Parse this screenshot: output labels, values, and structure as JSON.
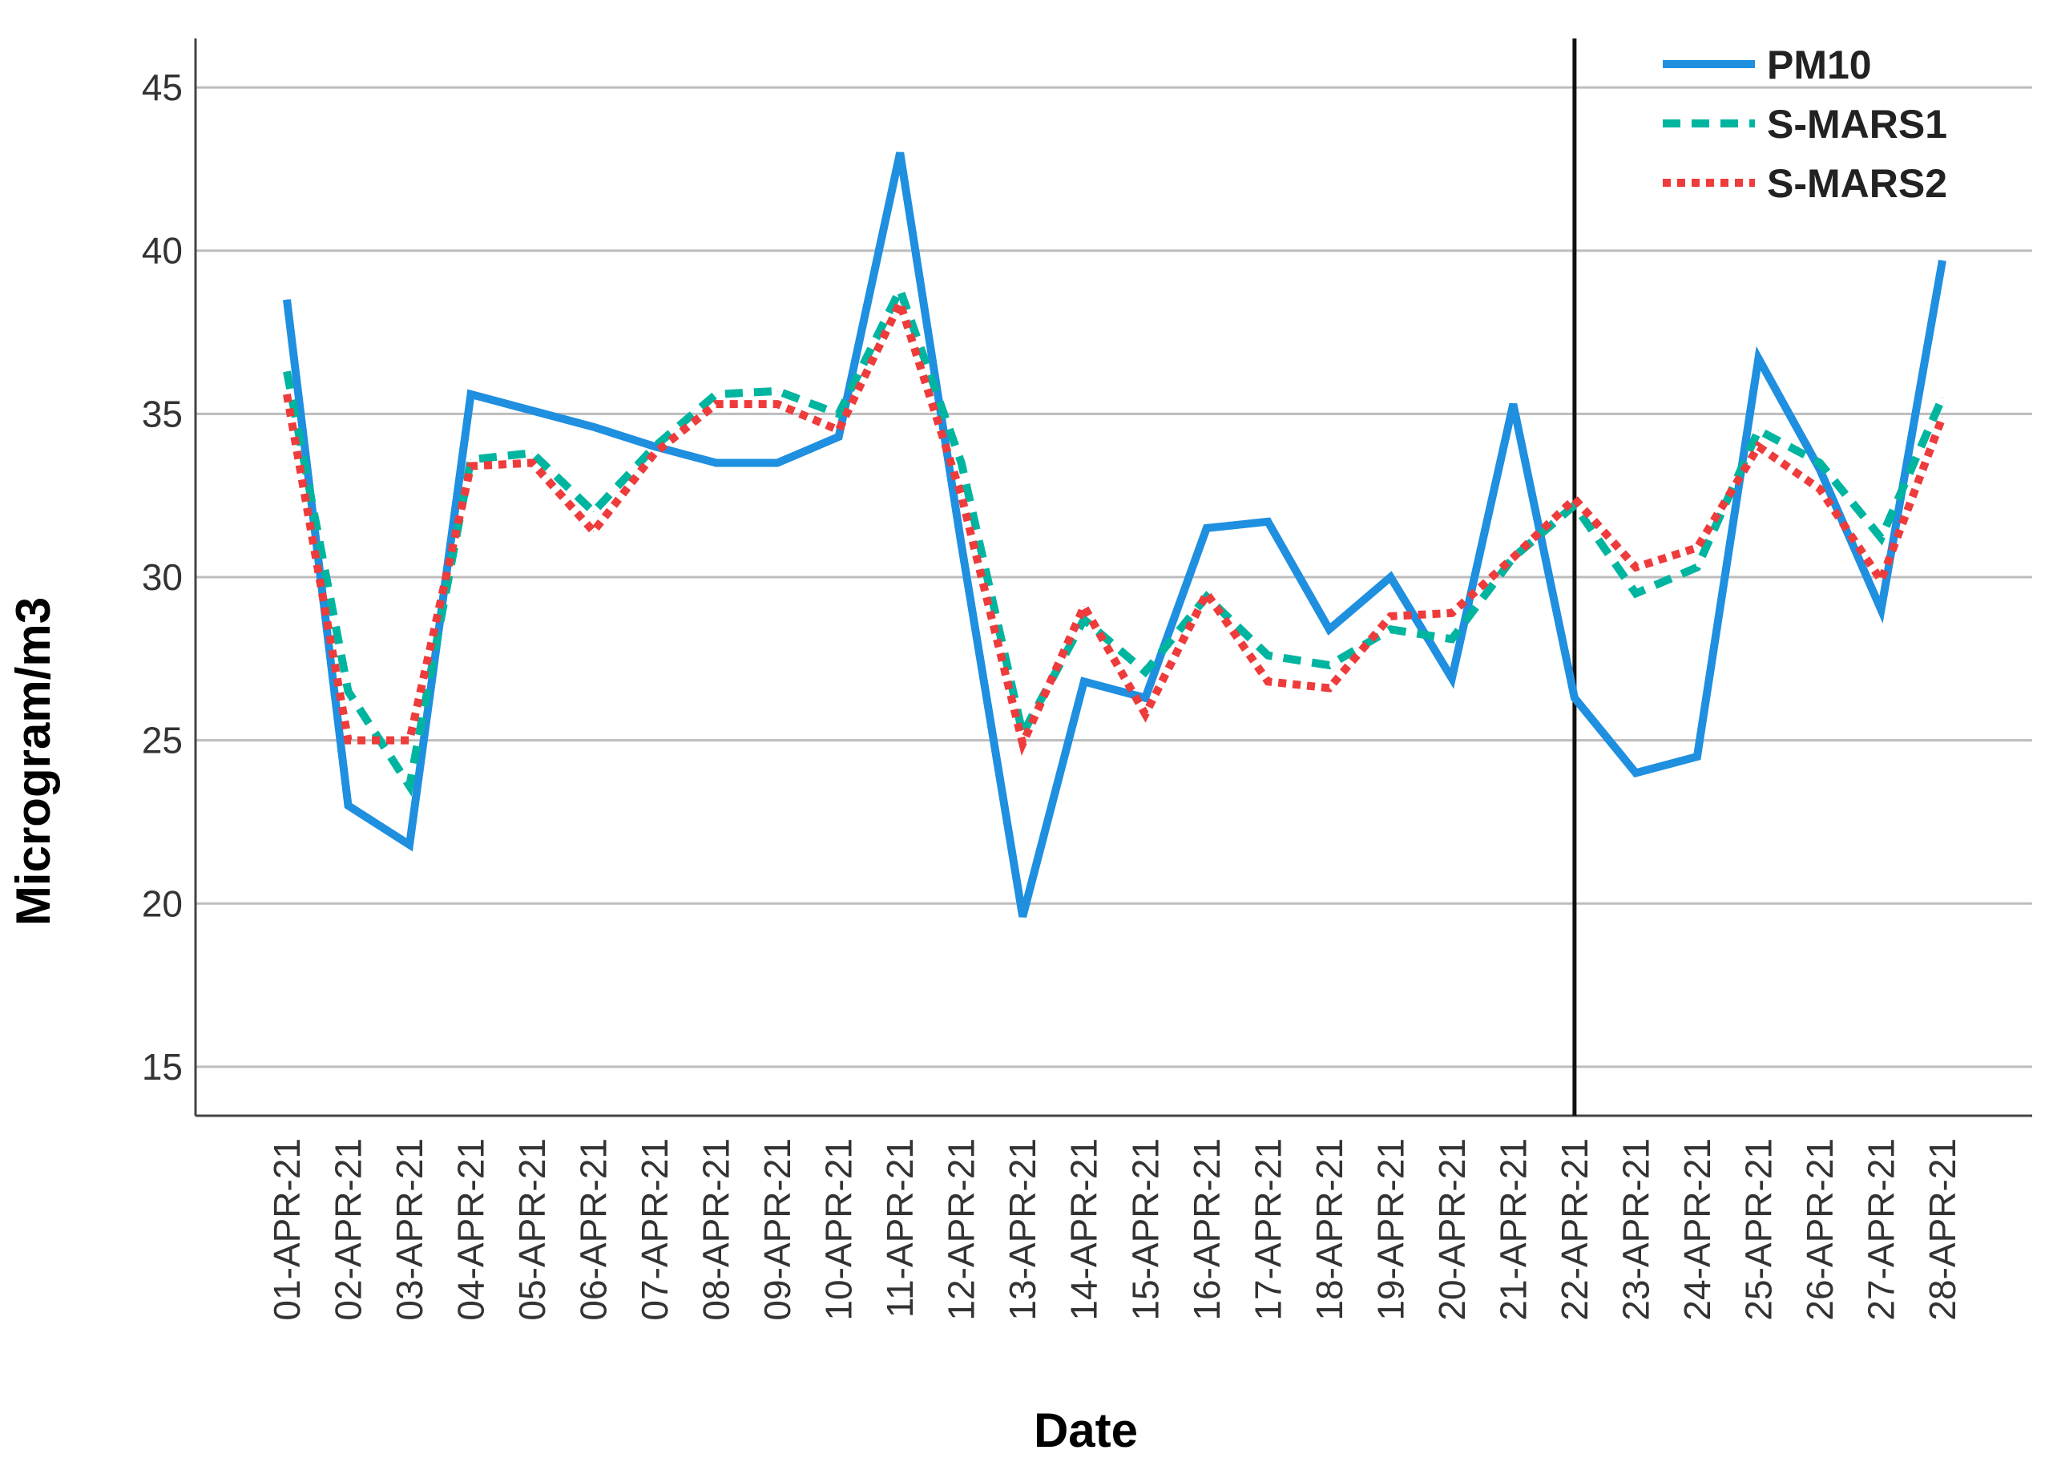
{
  "chart_data": {
    "type": "line",
    "title": "",
    "xlabel": "Date",
    "ylabel": "Microgram/m3",
    "ylim": [
      13.5,
      46.5
    ],
    "yticks": [
      15,
      20,
      25,
      30,
      35,
      40,
      45
    ],
    "grid": "horizontal",
    "legend_position": "top-right",
    "categories": [
      "01-APR-21",
      "02-APR-21",
      "03-APR-21",
      "04-APR-21",
      "05-APR-21",
      "06-APR-21",
      "07-APR-21",
      "08-APR-21",
      "09-APR-21",
      "10-APR-21",
      "11-APR-21",
      "12-APR-21",
      "13-APR-21",
      "14-APR-21",
      "15-APR-21",
      "16-APR-21",
      "17-APR-21",
      "18-APR-21",
      "19-APR-21",
      "20-APR-21",
      "21-APR-21",
      "22-APR-21",
      "23-APR-21",
      "24-APR-21",
      "25-APR-21",
      "26-APR-21",
      "27-APR-21",
      "28-APR-21"
    ],
    "vertical_marker": "22-APR-21",
    "series": [
      {
        "name": "PM10",
        "color": "#1f8fe0",
        "style": "solid",
        "values": [
          38.5,
          23.0,
          21.8,
          35.6,
          35.1,
          34.6,
          34.0,
          33.5,
          33.5,
          34.3,
          43.0,
          31.0,
          19.6,
          26.8,
          26.3,
          31.5,
          31.7,
          28.4,
          30.0,
          26.9,
          35.3,
          26.3,
          24.0,
          24.5,
          36.7,
          33.3,
          29.0,
          39.7
        ]
      },
      {
        "name": "S-MARS1",
        "color": "#00b5a0",
        "style": "dashed",
        "values": [
          36.3,
          26.5,
          23.6,
          33.6,
          33.8,
          32.0,
          34.0,
          35.6,
          35.7,
          35.0,
          38.8,
          33.5,
          25.2,
          28.7,
          27.1,
          29.4,
          27.6,
          27.3,
          28.4,
          28.1,
          30.6,
          32.2,
          29.5,
          30.3,
          34.5,
          33.5,
          31.2,
          35.5
        ]
      },
      {
        "name": "S-MARS2",
        "color": "#ee3b3b",
        "style": "dotted",
        "values": [
          35.6,
          25.0,
          25.0,
          33.4,
          33.5,
          31.4,
          33.8,
          35.3,
          35.3,
          34.5,
          38.4,
          32.5,
          24.9,
          29.1,
          25.8,
          29.5,
          26.8,
          26.6,
          28.8,
          28.9,
          30.6,
          32.4,
          30.3,
          30.9,
          34.0,
          32.7,
          29.9,
          34.9
        ]
      }
    ]
  }
}
